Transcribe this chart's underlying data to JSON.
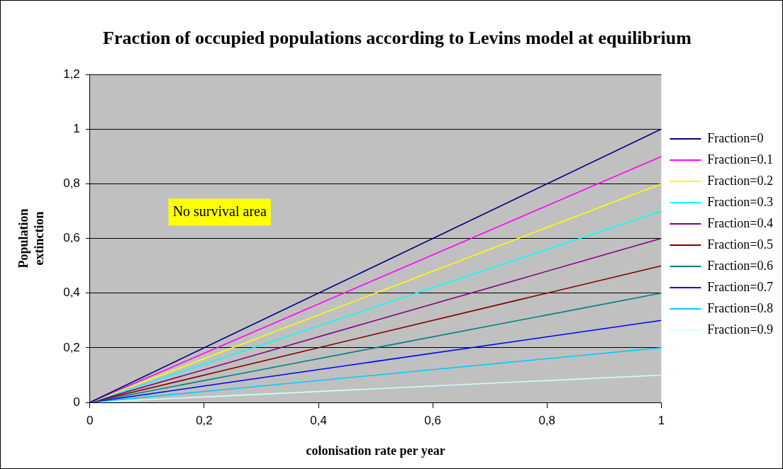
{
  "chart_data": {
    "type": "line",
    "title": "Fraction of occupied populations according to Levins model at equilibrium",
    "xlabel": "colonisation rate per year",
    "ylabel": "Population extinction",
    "x": [
      0,
      0.25,
      0.5,
      0.75,
      1
    ],
    "series": [
      {
        "name": "Fraction=0",
        "color": "#000080",
        "values": [
          0,
          0.25,
          0.5,
          0.75,
          1
        ]
      },
      {
        "name": "Fraction=0.1",
        "color": "#ff00ff",
        "values": [
          0,
          0.225,
          0.45,
          0.675,
          0.9
        ]
      },
      {
        "name": "Fraction=0.2",
        "color": "#ffff00",
        "values": [
          0,
          0.2,
          0.4,
          0.6,
          0.8
        ]
      },
      {
        "name": "Fraction=0.3",
        "color": "#00ffff",
        "values": [
          0,
          0.175,
          0.35,
          0.525,
          0.7
        ]
      },
      {
        "name": "Fraction=0.4",
        "color": "#800080",
        "values": [
          0,
          0.15,
          0.3,
          0.45,
          0.6
        ]
      },
      {
        "name": "Fraction=0.5",
        "color": "#800000",
        "values": [
          0,
          0.125,
          0.25,
          0.375,
          0.5
        ]
      },
      {
        "name": "Fraction=0.6",
        "color": "#008080",
        "values": [
          0,
          0.1,
          0.2,
          0.3,
          0.4
        ]
      },
      {
        "name": "Fraction=0.7",
        "color": "#0000ff",
        "values": [
          0,
          0.075,
          0.15,
          0.225,
          0.3
        ]
      },
      {
        "name": "Fraction=0.8",
        "color": "#00ccff",
        "values": [
          0,
          0.05,
          0.1,
          0.15,
          0.2
        ]
      },
      {
        "name": "Fraction=0.9",
        "color": "#ccffff",
        "values": [
          0,
          0.025,
          0.05,
          0.075,
          0.1
        ]
      }
    ],
    "xlim": [
      0,
      1
    ],
    "xticks": [
      0,
      {
        "value": 0.2,
        "label": "0,2"
      },
      {
        "value": 0.4,
        "label": "0,4"
      },
      {
        "value": 0.6,
        "label": "0,6"
      },
      {
        "value": 0.8,
        "label": "0,8"
      },
      1
    ],
    "ylim": [
      0,
      1.2
    ],
    "yticks": [
      0,
      {
        "value": 0.2,
        "label": "0,2"
      },
      {
        "value": 0.4,
        "label": "0,4"
      },
      {
        "value": 0.6,
        "label": "0,6"
      },
      {
        "value": 0.8,
        "label": "0,8"
      },
      1,
      {
        "value": 1.2,
        "label": "1,2"
      }
    ],
    "grid": "y",
    "legend": "right",
    "marker": "none",
    "line_style": "solid",
    "annotations": [
      "No survival area"
    ]
  }
}
